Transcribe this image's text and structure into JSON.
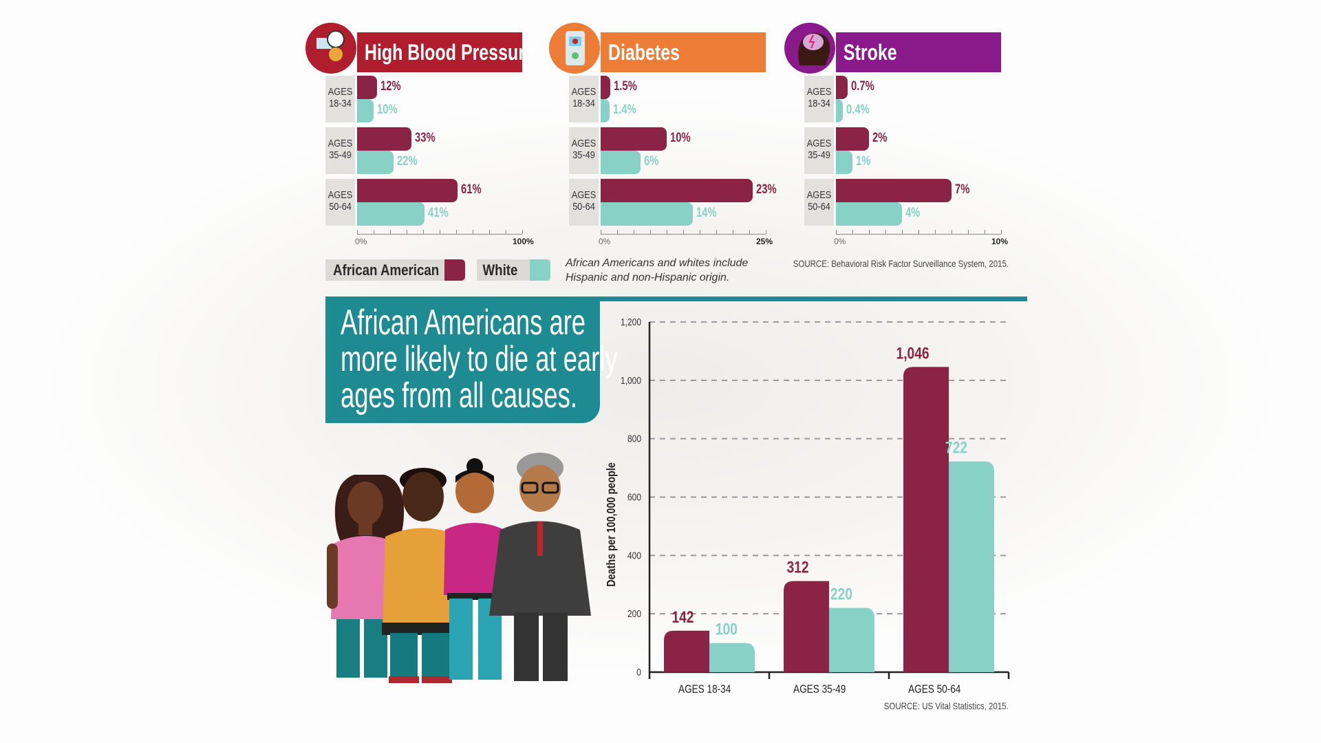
{
  "colors": {
    "african_american": "#8b2346",
    "white": "#88d1c6",
    "teal": "#1e8a91",
    "hbp": "#b01e2e",
    "diabetes": "#ec7c36",
    "stroke": "#8a1a8c"
  },
  "panels": [
    {
      "title": "High Blood Pressure",
      "icon": "blood-pressure-gauge-icon",
      "color": "#b01e2e",
      "axis_min": "0%",
      "axis_max": "100%"
    },
    {
      "title": "Diabetes",
      "icon": "glucose-meter-icon",
      "color": "#ec7c36",
      "axis_min": "0%",
      "axis_max": "25%"
    },
    {
      "title": "Stroke",
      "icon": "brain-head-icon",
      "color": "#8a1a8c",
      "axis_min": "0%",
      "axis_max": "10%"
    }
  ],
  "age_groups": [
    {
      "line1": "AGES",
      "line2": "18-34"
    },
    {
      "line1": "AGES",
      "line2": "35-49"
    },
    {
      "line1": "AGES",
      "line2": "50-64"
    }
  ],
  "legend": {
    "african_american": "African American",
    "white": "White"
  },
  "note": {
    "line1": "African Americans and whites include",
    "line2": "Hispanic and non-Hispanic origin."
  },
  "source_top": "SOURCE: Behavioral Risk Factor Surveillance System, 2015.",
  "headline": {
    "line1": "African Americans are",
    "line2": "more likely to die at early",
    "line3": "ages from all causes."
  },
  "source_bottom": "SOURCE: US Vital Statistics, 2015.",
  "chart_data": [
    {
      "type": "bar",
      "orientation": "horizontal",
      "title": "High Blood Pressure",
      "categories": [
        "AGES 18-34",
        "AGES 35-49",
        "AGES 50-64"
      ],
      "series": [
        {
          "name": "African American",
          "values": [
            12,
            33,
            61
          ],
          "labels": [
            "12%",
            "33%",
            "61%"
          ]
        },
        {
          "name": "White",
          "values": [
            10,
            22,
            41
          ],
          "labels": [
            "10%",
            "22%",
            "41%"
          ]
        }
      ],
      "xlim": [
        0,
        100
      ],
      "unit": "%"
    },
    {
      "type": "bar",
      "orientation": "horizontal",
      "title": "Diabetes",
      "categories": [
        "AGES 18-34",
        "AGES 35-49",
        "AGES 50-64"
      ],
      "series": [
        {
          "name": "African American",
          "values": [
            1.5,
            10,
            23
          ],
          "labels": [
            "1.5%",
            "10%",
            "23%"
          ]
        },
        {
          "name": "White",
          "values": [
            1.4,
            6,
            14
          ],
          "labels": [
            "1.4%",
            "6%",
            "14%"
          ]
        }
      ],
      "xlim": [
        0,
        25
      ],
      "unit": "%"
    },
    {
      "type": "bar",
      "orientation": "horizontal",
      "title": "Stroke",
      "categories": [
        "AGES 18-34",
        "AGES 35-49",
        "AGES 50-64"
      ],
      "series": [
        {
          "name": "African American",
          "values": [
            0.7,
            2,
            7
          ],
          "labels": [
            "0.7%",
            "2%",
            "7%"
          ]
        },
        {
          "name": "White",
          "values": [
            0.4,
            1,
            4
          ],
          "labels": [
            "0.4%",
            "1%",
            "4%"
          ]
        }
      ],
      "xlim": [
        0,
        10
      ],
      "unit": "%"
    },
    {
      "type": "bar",
      "orientation": "vertical",
      "categories": [
        "AGES 18-34",
        "AGES 35-49",
        "AGES 50-64"
      ],
      "series": [
        {
          "name": "African American",
          "values": [
            142,
            312,
            1046
          ],
          "labels": [
            "142",
            "312",
            "1,046"
          ]
        },
        {
          "name": "White",
          "values": [
            100,
            220,
            722
          ],
          "labels": [
            "100",
            "220",
            "722"
          ]
        }
      ],
      "ylabel": "Deaths per 100,000 people",
      "ylim": [
        0,
        1200
      ],
      "yticks": [
        "0",
        "200",
        "400",
        "600",
        "800",
        "1,000",
        "1,200"
      ],
      "grid": "dashed horizontal"
    }
  ]
}
